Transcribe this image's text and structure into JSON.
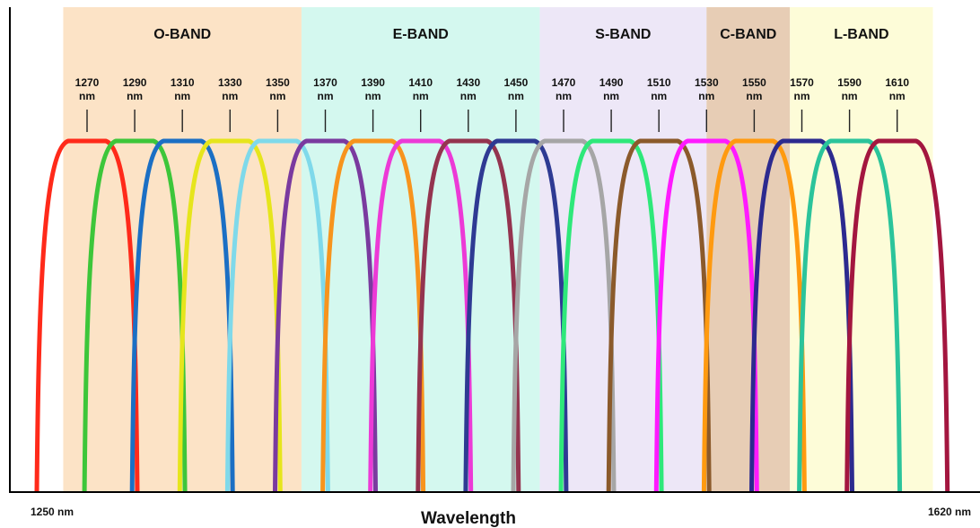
{
  "chart_data": {
    "type": "line",
    "xlabel": "Wavelength",
    "xlim": [
      1250,
      1620
    ],
    "x_start_label": "1250 nm",
    "x_end_label": "1620 nm",
    "nm_unit": "nm",
    "bands": [
      {
        "name": "O-BAND",
        "start": 1260,
        "end": 1360,
        "color": "#fce3c6"
      },
      {
        "name": "E-BAND",
        "start": 1360,
        "end": 1460,
        "color": "#d4f8ef"
      },
      {
        "name": "S-BAND",
        "start": 1460,
        "end": 1530,
        "color": "#ede7f7"
      },
      {
        "name": "C-BAND",
        "start": 1530,
        "end": 1565,
        "color": "#e7cdb5"
      },
      {
        "name": "L-BAND",
        "start": 1565,
        "end": 1625,
        "color": "#fdfcd8"
      }
    ],
    "series": [
      {
        "x": 1270,
        "label": "1270",
        "color": "#ff2a1a"
      },
      {
        "x": 1290,
        "label": "1290",
        "color": "#3dc63a"
      },
      {
        "x": 1310,
        "label": "1310",
        "color": "#1b6fc4"
      },
      {
        "x": 1330,
        "label": "1330",
        "color": "#e6e51c"
      },
      {
        "x": 1350,
        "label": "1350",
        "color": "#7fd9ea"
      },
      {
        "x": 1370,
        "label": "1370",
        "color": "#7a3a9f"
      },
      {
        "x": 1390,
        "label": "1390",
        "color": "#f7941d"
      },
      {
        "x": 1410,
        "label": "1410",
        "color": "#ec3ad6"
      },
      {
        "x": 1430,
        "label": "1430",
        "color": "#94344f"
      },
      {
        "x": 1450,
        "label": "1450",
        "color": "#2e3a93"
      },
      {
        "x": 1470,
        "label": "1470",
        "color": "#a6a6a6"
      },
      {
        "x": 1490,
        "label": "1490",
        "color": "#2ee87a"
      },
      {
        "x": 1510,
        "label": "1510",
        "color": "#8b5a2b"
      },
      {
        "x": 1530,
        "label": "1530",
        "color": "#ff1aff"
      },
      {
        "x": 1550,
        "label": "1550",
        "color": "#ff9a10"
      },
      {
        "x": 1570,
        "label": "1570",
        "color": "#2c2a8f"
      },
      {
        "x": 1590,
        "label": "1590",
        "color": "#2bc49b"
      },
      {
        "x": 1610,
        "label": "1610",
        "color": "#a3163f"
      }
    ]
  }
}
